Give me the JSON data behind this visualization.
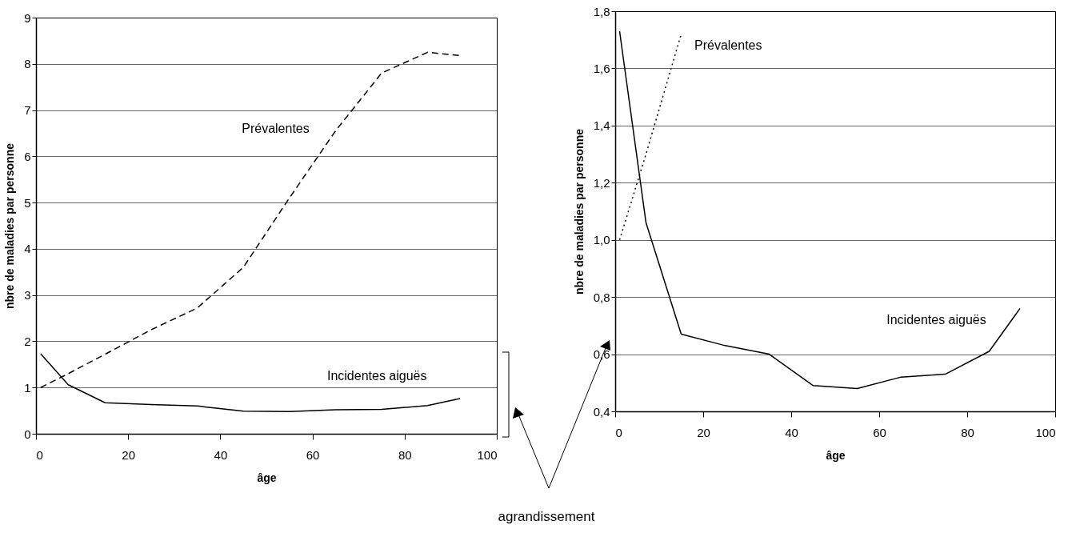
{
  "chart_data": [
    {
      "type": "line",
      "xlabel": "âge",
      "ylabel": "nbre de maladies par personne",
      "xlim": [
        0,
        100
      ],
      "xticks": [
        0,
        20,
        40,
        60,
        80,
        100
      ],
      "ylim": [
        0,
        9
      ],
      "yticks": [
        0,
        1,
        2,
        3,
        4,
        5,
        6,
        7,
        8,
        9
      ],
      "grid": "y",
      "x": [
        1,
        7,
        15,
        25,
        35,
        45,
        55,
        65,
        75,
        85,
        92
      ],
      "series": [
        {
          "name": "Prévalentes",
          "color": "#000000",
          "line_style": "dashed",
          "values": [
            1.0,
            1.3,
            1.72,
            2.25,
            2.72,
            3.6,
            5.1,
            6.55,
            7.8,
            8.25,
            8.18
          ]
        },
        {
          "name": "Incidentes aiguës",
          "color": "#000000",
          "line_style": "solid",
          "values": [
            1.73,
            1.06,
            0.67,
            0.63,
            0.6,
            0.49,
            0.48,
            0.52,
            0.53,
            0.61,
            0.76
          ]
        }
      ],
      "annotations": [
        "agrandissement"
      ]
    },
    {
      "type": "line",
      "xlabel": "âge",
      "ylabel": "nbre de maladies par personne",
      "xlim": [
        0,
        100
      ],
      "xticks": [
        0,
        20,
        40,
        60,
        80,
        100
      ],
      "ylim": [
        0.4,
        1.8
      ],
      "yticks": [
        {
          "value": 0.4,
          "label": "0,4"
        },
        {
          "value": 0.6,
          "label": "0,6"
        },
        {
          "value": 0.8,
          "label": "0,8"
        },
        {
          "value": 1.0,
          "label": "1,0"
        },
        {
          "value": 1.2,
          "label": "1,2"
        },
        {
          "value": 1.4,
          "label": "1,4"
        },
        {
          "value": 1.6,
          "label": "1,6"
        },
        {
          "value": 1.8,
          "label": "1,8"
        }
      ],
      "grid": "y",
      "x": [
        1,
        7,
        15,
        25,
        35,
        45,
        55,
        65,
        75,
        85,
        92
      ],
      "series": [
        {
          "name": "Prévalentes",
          "color": "#000000",
          "line_style": "dotted",
          "values": [
            1.0,
            1.3,
            1.72,
            null,
            null,
            null,
            null,
            null,
            null,
            null,
            null
          ]
        },
        {
          "name": "Incidentes aiguës",
          "color": "#000000",
          "line_style": "solid",
          "values": [
            1.73,
            1.06,
            0.67,
            0.63,
            0.6,
            0.49,
            0.48,
            0.52,
            0.53,
            0.61,
            0.76
          ]
        }
      ]
    }
  ]
}
